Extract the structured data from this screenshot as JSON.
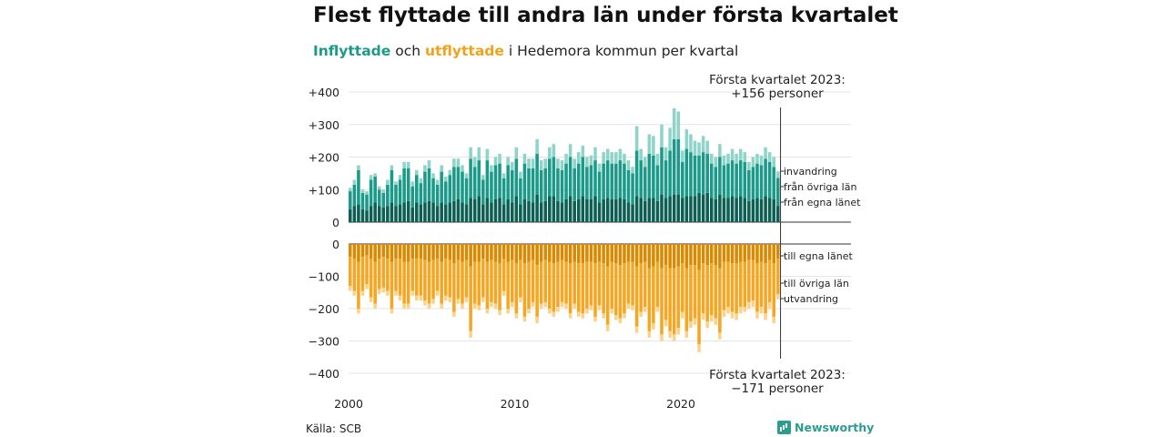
{
  "header": {
    "title": "Flest flyttade till andra län under första kvartalet",
    "subtitle_in": "Inflyttade",
    "subtitle_och": " och ",
    "subtitle_out": "utflyttade",
    "subtitle_rest": " i Hedemora kommun per kvartal"
  },
  "footer": {
    "source": "Källa: SCB",
    "brand": "Newsworthy"
  },
  "colors": {
    "in_same": "#0d5e53",
    "in_other": "#1b9a8a",
    "in_immig": "#8fd4c9",
    "out_same": "#d98a00",
    "out_other": "#f5a623",
    "out_emig": "#fbd28a"
  },
  "chart_data": {
    "type": "bar",
    "x_start": "2000 Q1",
    "x_end": "2023 Q1",
    "x_ticks": [
      "2000",
      "2010",
      "2020"
    ],
    "y_ticks_top": [
      "+400",
      "+300",
      "+200",
      "+100",
      "0"
    ],
    "y_ticks_bottom": [
      "0",
      "−100",
      "−200",
      "−300",
      "−400"
    ],
    "ylim_top": [
      0,
      400
    ],
    "ylim_bottom": [
      -400,
      0
    ],
    "annotation_top_line1": "Första kvartalet 2023:",
    "annotation_top_line2": "+156 personer",
    "annotation_bottom_line1": "Första kvartalet 2023:",
    "annotation_bottom_line2": "−171 personer",
    "series_in": [
      "från egna länet",
      "från övriga län",
      "invandring"
    ],
    "series_out": [
      "till egna länet",
      "till övriga län",
      "utvandring"
    ],
    "in_total": [
      105,
      130,
      175,
      100,
      95,
      145,
      150,
      110,
      100,
      130,
      175,
      125,
      145,
      185,
      185,
      125,
      160,
      135,
      175,
      190,
      150,
      130,
      175,
      140,
      160,
      195,
      195,
      175,
      150,
      230,
      200,
      230,
      145,
      225,
      175,
      200,
      210,
      150,
      200,
      185,
      230,
      155,
      210,
      195,
      195,
      255,
      190,
      195,
      230,
      240,
      195,
      190,
      210,
      240,
      195,
      215,
      235,
      200,
      205,
      230,
      180,
      215,
      225,
      215,
      215,
      225,
      210,
      190,
      170,
      295,
      225,
      200,
      270,
      265,
      210,
      300,
      230,
      290,
      350,
      340,
      220,
      285,
      270,
      250,
      245,
      265,
      250,
      210,
      200,
      240,
      205,
      210,
      225,
      210,
      225,
      215,
      185,
      200,
      210,
      205,
      230,
      215,
      200,
      156
    ],
    "in_same": [
      40,
      50,
      55,
      40,
      35,
      50,
      60,
      50,
      45,
      50,
      60,
      50,
      55,
      60,
      65,
      45,
      60,
      55,
      60,
      65,
      60,
      50,
      60,
      55,
      60,
      65,
      70,
      60,
      55,
      75,
      70,
      80,
      55,
      75,
      60,
      70,
      75,
      55,
      70,
      60,
      80,
      55,
      70,
      65,
      60,
      85,
      60,
      65,
      80,
      80,
      65,
      60,
      70,
      80,
      65,
      70,
      80,
      70,
      70,
      80,
      60,
      70,
      75,
      70,
      70,
      75,
      70,
      60,
      55,
      80,
      75,
      65,
      75,
      75,
      65,
      85,
      75,
      80,
      85,
      85,
      75,
      80,
      80,
      80,
      90,
      85,
      90,
      75,
      70,
      85,
      75,
      75,
      80,
      75,
      80,
      75,
      65,
      70,
      75,
      70,
      80,
      75,
      70,
      50
    ],
    "in_other": [
      55,
      65,
      105,
      50,
      50,
      80,
      80,
      50,
      45,
      65,
      100,
      65,
      75,
      105,
      100,
      65,
      85,
      65,
      95,
      100,
      75,
      65,
      95,
      70,
      85,
      105,
      100,
      95,
      80,
      120,
      100,
      110,
      75,
      115,
      95,
      105,
      105,
      80,
      105,
      100,
      115,
      80,
      110,
      100,
      105,
      125,
      100,
      100,
      115,
      120,
      100,
      100,
      110,
      120,
      100,
      110,
      120,
      100,
      105,
      110,
      95,
      110,
      115,
      110,
      110,
      115,
      110,
      100,
      95,
      140,
      115,
      105,
      135,
      130,
      110,
      145,
      115,
      140,
      170,
      170,
      110,
      145,
      135,
      125,
      115,
      130,
      120,
      105,
      100,
      115,
      100,
      105,
      110,
      105,
      110,
      110,
      95,
      100,
      105,
      105,
      115,
      110,
      100,
      86
    ],
    "out_total": [
      145,
      160,
      215,
      160,
      140,
      180,
      200,
      155,
      150,
      160,
      215,
      160,
      175,
      200,
      200,
      160,
      175,
      175,
      190,
      200,
      185,
      160,
      200,
      175,
      180,
      225,
      185,
      200,
      180,
      290,
      200,
      205,
      180,
      215,
      195,
      200,
      220,
      160,
      215,
      195,
      230,
      180,
      240,
      215,
      195,
      245,
      200,
      195,
      215,
      225,
      210,
      195,
      200,
      230,
      200,
      225,
      230,
      215,
      205,
      240,
      205,
      230,
      270,
      215,
      235,
      245,
      230,
      200,
      205,
      275,
      225,
      210,
      290,
      265,
      210,
      300,
      255,
      290,
      300,
      280,
      230,
      290,
      260,
      250,
      335,
      235,
      260,
      240,
      250,
      295,
      225,
      215,
      230,
      235,
      215,
      210,
      200,
      195,
      230,
      215,
      235,
      200,
      245,
      171
    ],
    "out_same": [
      40,
      45,
      55,
      40,
      35,
      45,
      55,
      45,
      40,
      45,
      55,
      45,
      45,
      55,
      55,
      45,
      45,
      45,
      50,
      55,
      50,
      45,
      55,
      45,
      50,
      60,
      50,
      55,
      50,
      70,
      55,
      55,
      45,
      55,
      50,
      55,
      60,
      45,
      55,
      50,
      60,
      50,
      60,
      55,
      50,
      65,
      55,
      50,
      55,
      60,
      55,
      50,
      55,
      60,
      55,
      60,
      60,
      55,
      55,
      60,
      55,
      60,
      70,
      55,
      60,
      65,
      60,
      55,
      55,
      70,
      60,
      55,
      75,
      70,
      55,
      75,
      65,
      75,
      75,
      70,
      60,
      75,
      65,
      65,
      80,
      60,
      65,
      60,
      65,
      75,
      55,
      55,
      60,
      60,
      55,
      55,
      50,
      50,
      60,
      55,
      60,
      50,
      60,
      45
    ],
    "out_other": [
      90,
      100,
      145,
      105,
      90,
      120,
      130,
      95,
      95,
      100,
      145,
      100,
      115,
      130,
      130,
      100,
      115,
      115,
      125,
      130,
      120,
      100,
      130,
      115,
      115,
      150,
      120,
      130,
      115,
      200,
      130,
      135,
      120,
      145,
      130,
      130,
      145,
      100,
      145,
      130,
      155,
      115,
      165,
      145,
      130,
      160,
      130,
      130,
      145,
      150,
      140,
      130,
      130,
      155,
      130,
      150,
      155,
      145,
      135,
      165,
      135,
      155,
      180,
      145,
      160,
      165,
      155,
      130,
      135,
      185,
      150,
      140,
      195,
      175,
      140,
      205,
      170,
      195,
      205,
      190,
      150,
      195,
      175,
      165,
      230,
      155,
      175,
      160,
      165,
      200,
      150,
      140,
      150,
      155,
      140,
      140,
      130,
      125,
      150,
      140,
      155,
      130,
      165,
      110
    ]
  }
}
